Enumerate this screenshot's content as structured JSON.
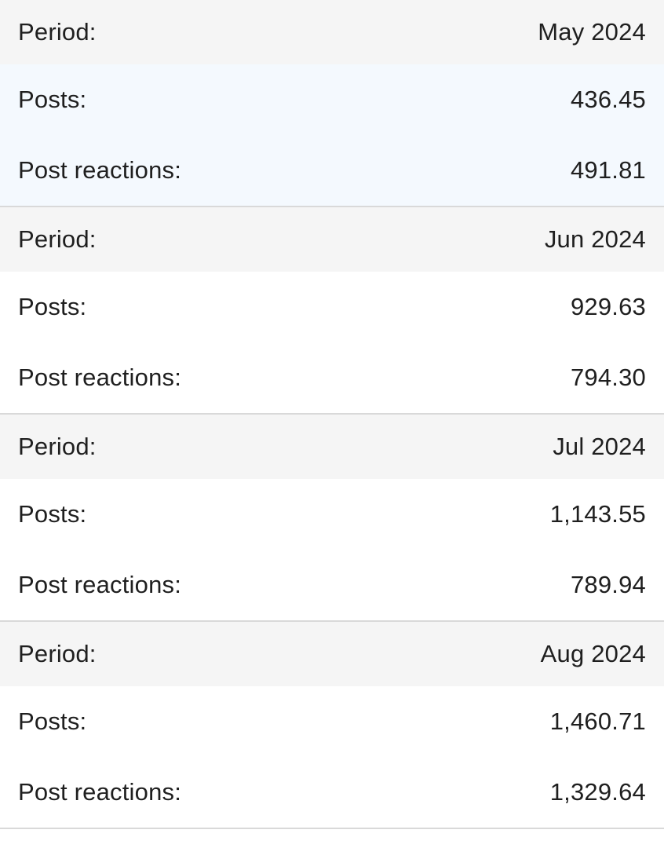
{
  "colors": {
    "period_row_bg": "#f5f5f5",
    "highlight_bg": "#f4f9fe",
    "divider": "#d9d9d9",
    "text": "#1f1f1f"
  },
  "labels": {
    "period": "Period:",
    "posts": "Posts:",
    "post_reactions": "Post reactions:"
  },
  "groups": [
    {
      "period": "May 2024",
      "posts": "436.45",
      "post_reactions": "491.81",
      "highlighted": true
    },
    {
      "period": "Jun 2024",
      "posts": "929.63",
      "post_reactions": "794.30",
      "highlighted": false
    },
    {
      "period": "Jul 2024",
      "posts": "1,143.55",
      "post_reactions": "789.94",
      "highlighted": false
    },
    {
      "period": "Aug 2024",
      "posts": "1,460.71",
      "post_reactions": "1,329.64",
      "highlighted": false
    }
  ]
}
